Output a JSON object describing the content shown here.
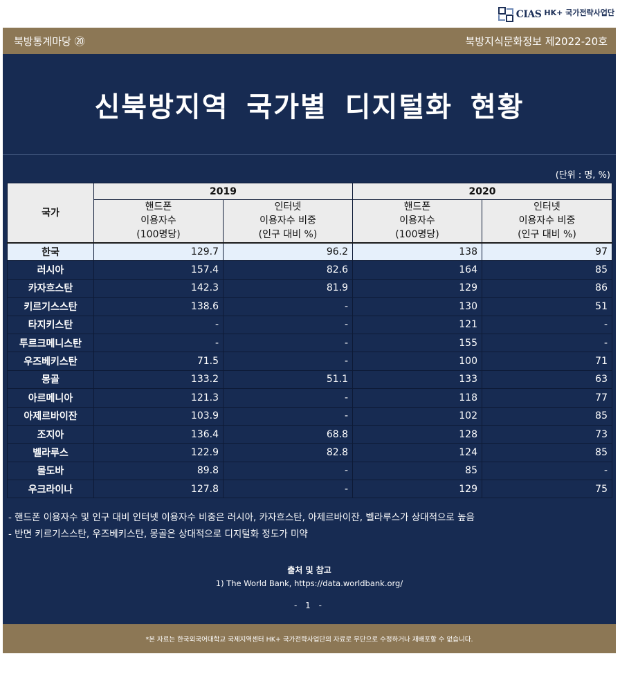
{
  "logo": {
    "text": "CIAS",
    "title": "HK+ 국가전략사업단"
  },
  "header": {
    "left": "북방통계마당 ⑳",
    "right": "북방지식문화정보 제2022-20호"
  },
  "title": "신북방지역 국가별 디지털화 현황",
  "unit": "(단위 : 명, %)",
  "table": {
    "country_header": "국가",
    "years": [
      "2019",
      "2020"
    ],
    "phone_header": [
      "핸드폰",
      "이용자수",
      "(100명당)"
    ],
    "internet_header": [
      "인터넷",
      "이용자수 비중",
      "(인구 대비 %)"
    ],
    "rows": [
      {
        "country": "한국",
        "phone2019": "129.7",
        "net2019": "96.2",
        "phone2020": "138",
        "net2020": "97"
      },
      {
        "country": "러시아",
        "phone2019": "157.4",
        "net2019": "82.6",
        "phone2020": "164",
        "net2020": "85"
      },
      {
        "country": "카자흐스탄",
        "phone2019": "142.3",
        "net2019": "81.9",
        "phone2020": "129",
        "net2020": "86"
      },
      {
        "country": "키르기스스탄",
        "phone2019": "138.6",
        "net2019": "-",
        "phone2020": "130",
        "net2020": "51"
      },
      {
        "country": "타지키스탄",
        "phone2019": "-",
        "net2019": "-",
        "phone2020": "121",
        "net2020": "-"
      },
      {
        "country": "투르크메니스탄",
        "phone2019": "-",
        "net2019": "-",
        "phone2020": "155",
        "net2020": "-"
      },
      {
        "country": "우즈베키스탄",
        "phone2019": "71.5",
        "net2019": "-",
        "phone2020": "100",
        "net2020": "71"
      },
      {
        "country": "몽골",
        "phone2019": "133.2",
        "net2019": "51.1",
        "phone2020": "133",
        "net2020": "63"
      },
      {
        "country": "아르메니아",
        "phone2019": "121.3",
        "net2019": "-",
        "phone2020": "118",
        "net2020": "77"
      },
      {
        "country": "아제르바이잔",
        "phone2019": "103.9",
        "net2019": "-",
        "phone2020": "102",
        "net2020": "85"
      },
      {
        "country": "조지아",
        "phone2019": "136.4",
        "net2019": "68.8",
        "phone2020": "128",
        "net2020": "73"
      },
      {
        "country": "벨라루스",
        "phone2019": "122.9",
        "net2019": "82.8",
        "phone2020": "124",
        "net2020": "85"
      },
      {
        "country": "몰도바",
        "phone2019": "89.8",
        "net2019": "-",
        "phone2020": "85",
        "net2020": "-"
      },
      {
        "country": "우크라이나",
        "phone2019": "127.8",
        "net2019": "-",
        "phone2020": "129",
        "net2020": "75"
      }
    ]
  },
  "notes": [
    "- 핸드폰 이용자수 및 인구 대비 인터넷 이용자수 비중은 러시아, 카자흐스탄, 아제르바이잔, 벨라루스가 상대적으로 높음",
    "- 반면 키르기스스탄, 우즈베키스탄, 몽골은 상대적으로 디지털화 정도가 미약"
  ],
  "source": {
    "title": "출처 및 참고",
    "item": "1) The World Bank, https://data.worldbank.org/"
  },
  "page_number": "- 1 -",
  "footer": "*본 자료는 한국외국어대학교 국제지역센터 HK+ 국가전략사업단의 자료로 무단으로 수정하거나 재배포할 수 없습니다.",
  "colors": {
    "navy": "#172b52",
    "band": "#8c7755",
    "highlight_row": "#e6f0fb",
    "header_cell": "#ececec"
  }
}
